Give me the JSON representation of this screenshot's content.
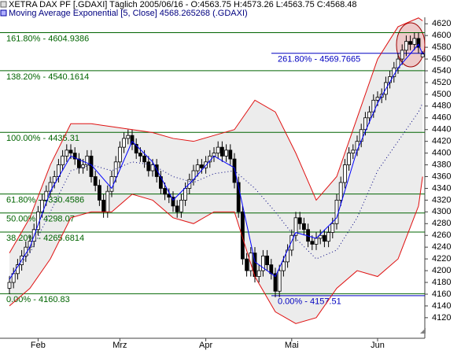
{
  "chart_data": {
    "type": "candlestick",
    "title": "XETRA DAX PF [.GDAXI]  Täglich 2005/06/16 - O:4563.75 H:4573.26 L:4563.75 C:4568.48",
    "subtitle": "Moving Average Exponential [5, Close] 4568.265268 (.GDAXI)",
    "categories": [
      null,
      null,
      null,
      null,
      null,
      null,
      null,
      "Feb",
      null,
      null,
      null,
      null,
      null,
      null,
      null,
      null,
      null,
      null,
      null,
      null,
      null,
      null,
      null,
      null,
      null,
      null,
      null,
      "Mrz",
      null,
      null,
      null,
      null,
      null,
      null,
      null,
      null,
      null,
      null,
      null,
      null,
      null,
      null,
      null,
      null,
      null,
      null,
      null,
      null,
      "Apr",
      null,
      null,
      null,
      null,
      null,
      null,
      null,
      null,
      null,
      null,
      null,
      null,
      null,
      null,
      null,
      null,
      null,
      null,
      null,
      null,
      "Mai",
      null,
      null,
      null,
      null,
      null,
      null,
      null,
      null,
      null,
      null,
      null,
      null,
      null,
      null,
      null,
      null,
      null,
      null,
      null,
      null,
      "Jun",
      null,
      null,
      null,
      null,
      null,
      null,
      null,
      null,
      null,
      null,
      null
    ],
    "open": [
      4170,
      4180,
      4195,
      4210,
      4225,
      4240,
      4250,
      4270,
      4300,
      4320,
      4335,
      4350,
      4360,
      4380,
      4395,
      4405,
      4400,
      4390,
      4375,
      4380,
      4395,
      4360,
      4345,
      4320,
      4300,
      4335,
      4360,
      4385,
      4410,
      4425,
      4430,
      4415,
      4400,
      4395,
      4385,
      4370,
      4380,
      4360,
      4340,
      4330,
      4325,
      4310,
      4300,
      4320,
      4340,
      4355,
      4370,
      4380,
      4375,
      4385,
      4395,
      4400,
      4410,
      4395,
      4405,
      4390,
      4350,
      4300,
      4220,
      4200,
      4230,
      4190,
      4200,
      4225,
      4210,
      4195,
      4165,
      4200,
      4215,
      4235,
      4260,
      4290,
      4280,
      4270,
      4250,
      4245,
      4255,
      4260,
      4250,
      4265,
      4280,
      4320,
      4350,
      4380,
      4400,
      4405,
      4420,
      4440,
      4460,
      4470,
      4490,
      4495,
      4500,
      4520,
      4530,
      4545,
      4560,
      4575,
      4590,
      4585,
      4595,
      4563.75
    ],
    "high": [
      4190,
      4205,
      4220,
      4235,
      4250,
      4260,
      4280,
      4310,
      4330,
      4345,
      4360,
      4370,
      4390,
      4405,
      4415,
      4415,
      4410,
      4400,
      4390,
      4405,
      4405,
      4370,
      4355,
      4330,
      4345,
      4370,
      4395,
      4420,
      4435,
      4440,
      4440,
      4425,
      4410,
      4405,
      4395,
      4390,
      4390,
      4370,
      4350,
      4340,
      4335,
      4320,
      4330,
      4350,
      4365,
      4380,
      4390,
      4390,
      4395,
      4405,
      4410,
      4420,
      4420,
      4415,
      4415,
      4400,
      4360,
      4310,
      4230,
      4240,
      4240,
      4210,
      4235,
      4235,
      4220,
      4205,
      4210,
      4225,
      4245,
      4270,
      4300,
      4300,
      4290,
      4280,
      4260,
      4265,
      4270,
      4270,
      4275,
      4290,
      4330,
      4360,
      4390,
      4410,
      4415,
      4430,
      4450,
      4470,
      4480,
      4500,
      4505,
      4510,
      4530,
      4540,
      4555,
      4570,
      4585,
      4600,
      4600,
      4605,
      4605,
      4573.26
    ],
    "low": [
      4160,
      4170,
      4185,
      4200,
      4215,
      4230,
      4240,
      4260,
      4290,
      4310,
      4325,
      4340,
      4350,
      4370,
      4385,
      4390,
      4380,
      4365,
      4365,
      4370,
      4350,
      4335,
      4310,
      4290,
      4290,
      4325,
      4350,
      4375,
      4400,
      4415,
      4405,
      4390,
      4385,
      4375,
      4360,
      4360,
      4350,
      4330,
      4320,
      4315,
      4300,
      4290,
      4290,
      4310,
      4330,
      4345,
      4360,
      4365,
      4365,
      4375,
      4385,
      4390,
      4385,
      4385,
      4380,
      4340,
      4290,
      4210,
      4190,
      4190,
      4180,
      4180,
      4190,
      4200,
      4185,
      4155,
      4155,
      4190,
      4205,
      4225,
      4250,
      4270,
      4260,
      4240,
      4235,
      4235,
      4245,
      4240,
      4240,
      4255,
      4270,
      4310,
      4340,
      4370,
      4390,
      4395,
      4410,
      4430,
      4450,
      4460,
      4480,
      4485,
      4490,
      4510,
      4520,
      4535,
      4550,
      4565,
      4575,
      4575,
      4570,
      4563.75
    ],
    "close": [
      4180,
      4195,
      4210,
      4225,
      4240,
      4250,
      4270,
      4300,
      4320,
      4335,
      4350,
      4360,
      4380,
      4395,
      4405,
      4400,
      4390,
      4375,
      4380,
      4395,
      4360,
      4345,
      4320,
      4300,
      4335,
      4360,
      4385,
      4410,
      4425,
      4430,
      4415,
      4400,
      4395,
      4385,
      4370,
      4380,
      4360,
      4340,
      4330,
      4325,
      4310,
      4300,
      4320,
      4340,
      4355,
      4370,
      4380,
      4375,
      4385,
      4395,
      4400,
      4410,
      4395,
      4405,
      4390,
      4350,
      4300,
      4220,
      4200,
      4230,
      4190,
      4200,
      4225,
      4210,
      4195,
      4165,
      4200,
      4215,
      4235,
      4260,
      4290,
      4280,
      4270,
      4250,
      4245,
      4255,
      4260,
      4250,
      4265,
      4280,
      4320,
      4350,
      4380,
      4400,
      4405,
      4420,
      4440,
      4460,
      4470,
      4490,
      4495,
      4500,
      4520,
      4530,
      4545,
      4560,
      4575,
      4590,
      4585,
      4595,
      4580,
      4568.48
    ],
    "series": [
      {
        "color": "#e01010",
        "x": [
          0,
          5,
          10,
          15,
          20,
          25,
          30,
          35,
          40,
          45,
          50,
          55,
          60,
          65,
          70,
          75,
          80,
          85,
          90,
          95,
          100,
          101
        ],
        "values": [
          4230,
          4290,
          4380,
          4450,
          4450,
          4445,
          4440,
          4435,
          4425,
          4420,
          4430,
          4440,
          4490,
          4470,
          4400,
          4320,
          4360,
          4460,
          4560,
          4615,
          4630,
          4625
        ]
      },
      {
        "color": "#e01010",
        "x": [
          0,
          5,
          10,
          15,
          20,
          25,
          30,
          35,
          40,
          45,
          50,
          55,
          60,
          65,
          70,
          75,
          80,
          85,
          90,
          95,
          100,
          101
        ],
        "values": [
          4140,
          4170,
          4220,
          4290,
          4300,
          4300,
          4330,
          4320,
          4290,
          4280,
          4300,
          4300,
          4190,
          4130,
          4110,
          4120,
          4170,
          4200,
          4190,
          4220,
          4310,
          4360
        ]
      },
      {
        "color": "#000080",
        "dotted": true,
        "x": [
          0,
          5,
          10,
          15,
          20,
          25,
          30,
          35,
          40,
          45,
          50,
          55,
          60,
          65,
          70,
          75,
          80,
          85,
          90,
          95,
          100,
          101
        ],
        "values": [
          4190,
          4230,
          4300,
          4370,
          4380,
          4370,
          4385,
          4380,
          4360,
          4350,
          4365,
          4370,
          4340,
          4300,
          4255,
          4220,
          4235,
          4290,
          4370,
          4420,
          4470,
          4485
        ]
      },
      {
        "color": "#0000ff",
        "x": [
          0,
          5,
          10,
          15,
          20,
          25,
          30,
          35,
          40,
          45,
          50,
          55,
          60,
          65,
          70,
          75,
          80,
          85,
          90,
          95,
          100,
          101
        ],
        "values": [
          4185,
          4240,
          4335,
          4395,
          4380,
          4340,
          4420,
          4385,
          4320,
          4355,
          4395,
          4375,
          4215,
          4190,
          4265,
          4255,
          4290,
          4405,
          4485,
          4545,
          4585,
          4568.265268
        ]
      }
    ],
    "fib_levels": [
      {
        "value": 4604.9386,
        "label": "161.80% - 4604.9386",
        "color": "#006400"
      },
      {
        "value": 4540.1614,
        "label": "138.20% - 4540.1614",
        "color": "#006400"
      },
      {
        "value": 4435.31,
        "label": "100.00% - 4435.31",
        "color": "#006400"
      },
      {
        "value": 4330.4586,
        "label": "61.80% - 4330.4586",
        "color": "#006400"
      },
      {
        "value": 4298.07,
        "label": "50.00% - 4298.07",
        "color": "#006400"
      },
      {
        "value": 4265.6814,
        "label": "38.20% - 4265.6814",
        "color": "#006400"
      },
      {
        "value": 4160.83,
        "label": "0.00% - 4160.83",
        "color": "#006400"
      },
      {
        "value": 4569.7665,
        "label": "261.80% - 4569.7665",
        "color": "#0000c0"
      },
      {
        "value": 4157.51,
        "label": "0.00% - 4157.51",
        "color": "#0000c0"
      }
    ],
    "ylim": [
      4085,
      4631
    ],
    "yticks": [
      4120,
      4140,
      4160,
      4180,
      4200,
      4220,
      4240,
      4260,
      4280,
      4300,
      4320,
      4340,
      4360,
      4380,
      4400,
      4420,
      4440,
      4460,
      4480,
      4500,
      4520,
      4540,
      4560,
      4580,
      4600,
      4620
    ]
  }
}
